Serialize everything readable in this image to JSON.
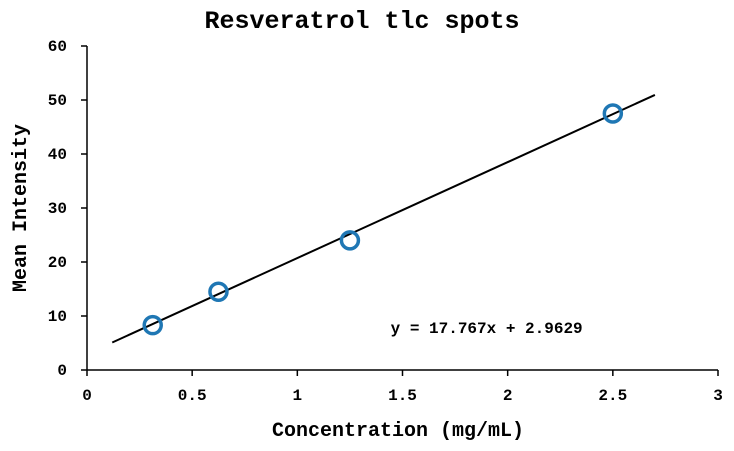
{
  "chart_data": {
    "type": "scatter",
    "title": "Resveratrol tlc spots",
    "xlabel": "Concentration (mg/mL)",
    "ylabel": "Mean Intensity",
    "xlim": [
      0,
      3
    ],
    "ylim": [
      0,
      60
    ],
    "xticks": [
      0,
      0.5,
      1,
      1.5,
      2,
      2.5,
      3
    ],
    "xtick_labels": [
      "0",
      "0.5",
      "1",
      "1.5",
      "2",
      "2.5",
      "3"
    ],
    "yticks": [
      0,
      10,
      20,
      30,
      40,
      50,
      60
    ],
    "ytick_labels": [
      "0",
      "10",
      "20",
      "30",
      "40",
      "50",
      "60"
    ],
    "grid": false,
    "marker_color": "#1f77b4",
    "series": [
      {
        "x": [
          0.3125,
          0.625,
          1.25,
          2.5
        ],
        "y": [
          8.3,
          14.5,
          24.0,
          47.5
        ]
      }
    ],
    "trendline": {
      "slope": 17.767,
      "intercept": 2.9629,
      "x_range": [
        0.12,
        2.7
      ],
      "equation": "y = 17.767x + 2.9629",
      "label_x": 1.9,
      "label_y": 8
    }
  }
}
